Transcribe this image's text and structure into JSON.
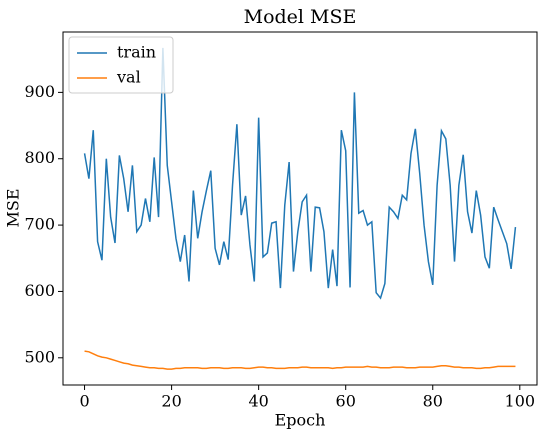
{
  "chart_data": {
    "type": "line",
    "title": "Model MSE",
    "xlabel": "Epoch",
    "ylabel": "MSE",
    "x": [
      0,
      1,
      2,
      3,
      4,
      5,
      6,
      7,
      8,
      9,
      10,
      11,
      12,
      13,
      14,
      15,
      16,
      17,
      18,
      19,
      20,
      21,
      22,
      23,
      24,
      25,
      26,
      27,
      28,
      29,
      30,
      31,
      32,
      33,
      34,
      35,
      36,
      37,
      38,
      39,
      40,
      41,
      42,
      43,
      44,
      45,
      46,
      47,
      48,
      49,
      50,
      51,
      52,
      53,
      54,
      55,
      56,
      57,
      58,
      59,
      60,
      61,
      62,
      63,
      64,
      65,
      66,
      67,
      68,
      69,
      70,
      71,
      72,
      73,
      74,
      75,
      76,
      77,
      78,
      79,
      80,
      81,
      82,
      83,
      84,
      85,
      86,
      87,
      88,
      89,
      90,
      91,
      92,
      93,
      94,
      95,
      96,
      97,
      98,
      99
    ],
    "series": [
      {
        "name": "train",
        "color": "#1f77b4",
        "values": [
          808,
          770,
          843,
          675,
          647,
          800,
          712,
          673,
          805,
          770,
          720,
          790,
          690,
          700,
          740,
          705,
          802,
          712,
          967,
          790,
          735,
          680,
          645,
          685,
          615,
          752,
          680,
          720,
          752,
          782,
          665,
          640,
          675,
          648,
          760,
          852,
          715,
          744,
          670,
          615,
          862,
          652,
          658,
          703,
          705,
          605,
          730,
          795,
          630,
          690,
          735,
          745,
          630,
          727,
          726,
          690,
          605,
          663,
          608,
          843,
          812,
          606,
          900,
          718,
          722,
          700,
          705,
          598,
          590,
          612,
          727,
          720,
          710,
          745,
          738,
          808,
          845,
          778,
          700,
          645,
          610,
          760,
          842,
          830,
          760,
          645,
          760,
          806,
          720,
          688,
          752,
          715,
          652,
          635,
          727,
          708,
          690,
          672,
          634,
          697
        ]
      },
      {
        "name": "val",
        "color": "#ff7f0e",
        "values": [
          510,
          509,
          506,
          503,
          501,
          500,
          498,
          496,
          494,
          492,
          491,
          489,
          488,
          487,
          486,
          485,
          485,
          484,
          484,
          483,
          483,
          484,
          484,
          485,
          485,
          485,
          485,
          484,
          484,
          485,
          485,
          485,
          484,
          484,
          485,
          485,
          485,
          484,
          484,
          485,
          486,
          486,
          485,
          485,
          484,
          484,
          484,
          485,
          485,
          485,
          486,
          486,
          485,
          485,
          485,
          485,
          485,
          484,
          485,
          485,
          486,
          486,
          486,
          486,
          486,
          487,
          486,
          486,
          485,
          485,
          485,
          486,
          486,
          486,
          485,
          485,
          485,
          486,
          486,
          486,
          486,
          487,
          488,
          488,
          487,
          486,
          486,
          485,
          485,
          485,
          484,
          484,
          485,
          485,
          486,
          487,
          487,
          487,
          487,
          487
        ]
      }
    ],
    "xlim": [
      -4.95,
      103.95
    ],
    "xticks": [
      0,
      20,
      40,
      60,
      80,
      100
    ],
    "ylim": [
      459,
      991
    ],
    "yticks": [
      500,
      600,
      700,
      800,
      900
    ],
    "legend": "upper left"
  }
}
